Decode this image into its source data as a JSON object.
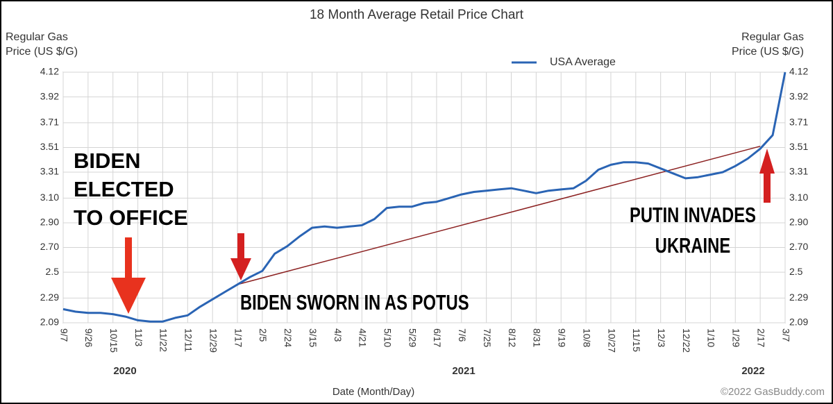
{
  "chart_data": {
    "type": "line",
    "title": "18 Month Average Retail Price Chart",
    "y_label": [
      "Regular Gas",
      "Price (US $/G)"
    ],
    "y2_label": [
      "Regular Gas",
      "Price (US $/G)"
    ],
    "x_label": "Date (Month/Day)",
    "year_labels": [
      "2020",
      "2021",
      "2022"
    ],
    "credit": "©2022 GasBuddy.com",
    "categories": [
      "9/7",
      null,
      "9/26",
      null,
      "10/15",
      null,
      "11/3",
      null,
      "11/22",
      null,
      "12/11",
      null,
      "12/29",
      null,
      "1/17",
      null,
      "2/5",
      null,
      "2/24",
      null,
      "3/15",
      null,
      "4/3",
      null,
      "4/21",
      null,
      "5/10",
      null,
      "5/29",
      null,
      "6/17",
      null,
      "7/6",
      null,
      "7/25",
      null,
      "8/12",
      null,
      "8/31",
      null,
      "9/19",
      null,
      "10/8",
      null,
      "10/27",
      null,
      "11/15",
      null,
      "12/3",
      null,
      "12/22",
      null,
      "1/10",
      null,
      "1/29",
      null,
      "2/17",
      null,
      "3/7"
    ],
    "series": [
      {
        "name": "USA Average",
        "color": "#2a64b4",
        "values": [
          2.2,
          2.18,
          2.17,
          2.17,
          2.16,
          2.14,
          2.11,
          2.1,
          2.1,
          2.13,
          2.15,
          2.22,
          2.28,
          2.34,
          2.4,
          2.46,
          2.51,
          2.65,
          2.71,
          2.79,
          2.86,
          2.87,
          2.86,
          2.87,
          2.88,
          2.93,
          3.02,
          3.03,
          3.03,
          3.06,
          3.07,
          3.1,
          3.13,
          3.15,
          3.16,
          3.17,
          3.18,
          3.16,
          3.14,
          3.16,
          3.17,
          3.18,
          3.24,
          3.33,
          3.37,
          3.39,
          3.39,
          3.38,
          3.34,
          3.3,
          3.26,
          3.27,
          3.29,
          3.31,
          3.36,
          3.42,
          3.5,
          3.61,
          4.12
        ]
      }
    ],
    "ylim": [
      2.09,
      4.12
    ],
    "yticks": [
      2.09,
      2.29,
      2.5,
      {
        "value": 2.7,
        "label": "2.70"
      },
      {
        "value": 2.9,
        "label": "2.90"
      },
      {
        "value": 3.1,
        "label": "3.10"
      },
      3.31,
      3.51,
      3.71,
      3.92,
      4.12
    ],
    "grid": true,
    "legend": "top",
    "trend_line": {
      "color": "#8b2020",
      "from_category": "1/17",
      "from_value": 2.4,
      "to_category": "2/17",
      "to_value": 3.52
    },
    "annotations": [
      {
        "lines": [
          "BIDEN",
          "ELECTED",
          "TO OFFICE"
        ]
      },
      {
        "lines": [
          "BIDEN SWORN IN AS POTUS"
        ]
      },
      {
        "lines": [
          "PUTIN INVADES",
          "UKRAINE"
        ]
      }
    ]
  }
}
